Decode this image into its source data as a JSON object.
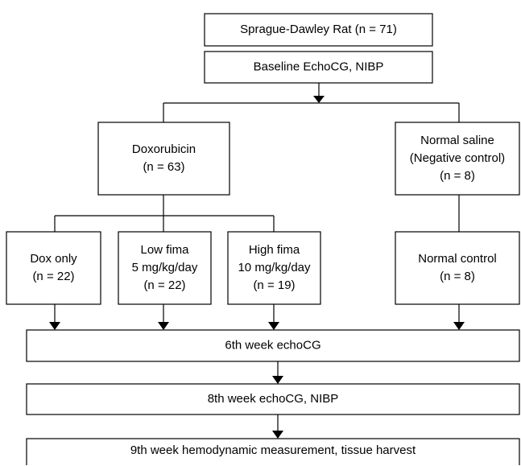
{
  "nodes": [
    {
      "lines": [
        "Sprague-Dawley Rat (n = 71)"
      ]
    },
    {
      "lines": [
        "Baseline EchoCG, NIBP"
      ]
    },
    {
      "lines": [
        "Doxorubicin",
        "(n = 63)"
      ]
    },
    {
      "lines": [
        "Normal saline",
        "(Negative control)",
        "(n = 8)"
      ]
    },
    {
      "lines": [
        "Dox only",
        "(n = 22)"
      ]
    },
    {
      "lines": [
        "Low fima",
        "5 mg/kg/day",
        "(n = 22)"
      ]
    },
    {
      "lines": [
        "High fima",
        "10 mg/kg/day",
        "(n = 19)"
      ]
    },
    {
      "lines": [
        "Normal control",
        "(n = 8)"
      ]
    },
    {
      "lines": [
        "6th week echoCG"
      ]
    },
    {
      "lines": [
        "8th week echoCG, NIBP"
      ]
    },
    {
      "lines": [
        "9th week hemodynamic measurement, tissue harvest"
      ]
    }
  ]
}
